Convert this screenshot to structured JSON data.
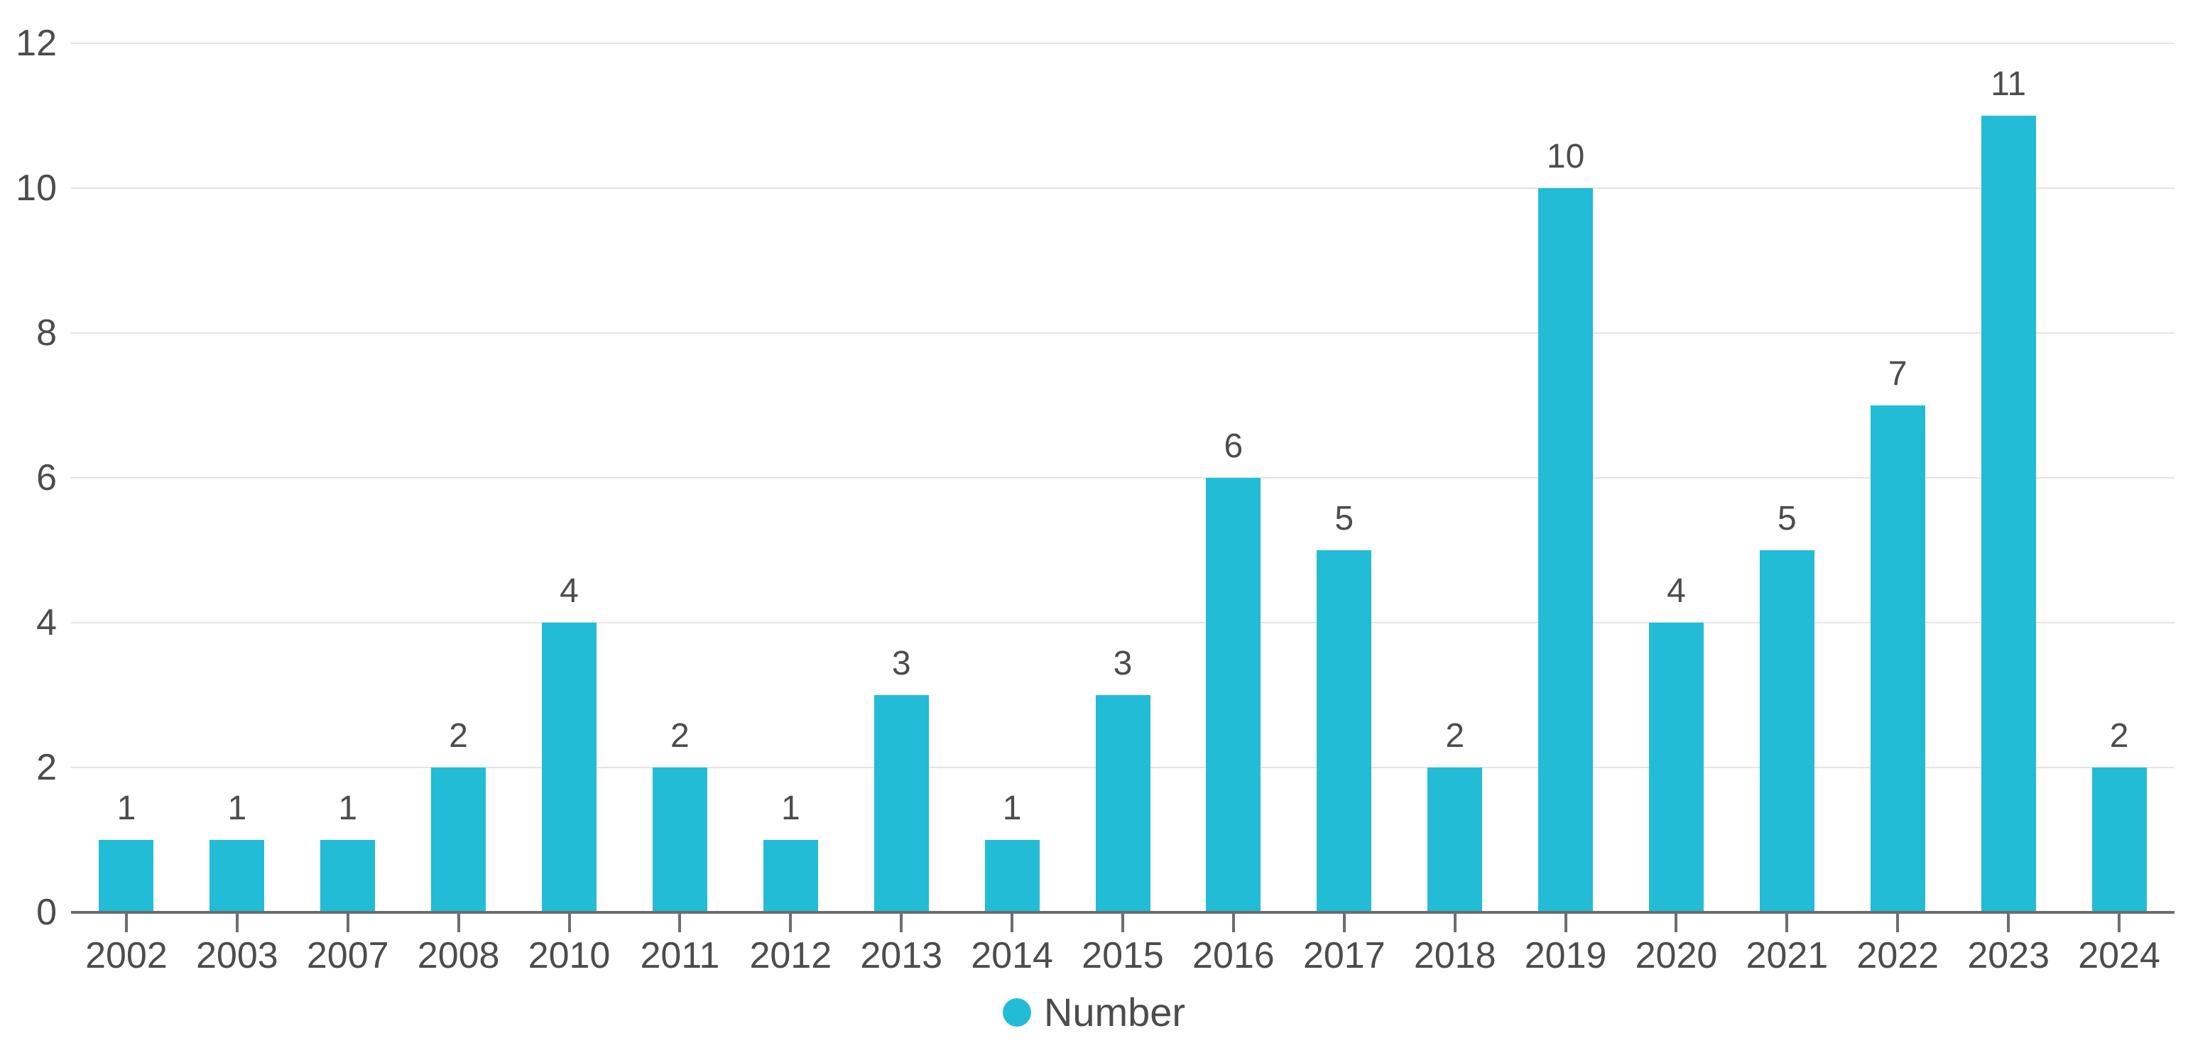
{
  "chart_data": {
    "type": "bar",
    "title": "",
    "categories": [
      "2002",
      "2003",
      "2007",
      "2008",
      "2010",
      "2011",
      "2012",
      "2013",
      "2014",
      "2015",
      "2016",
      "2017",
      "2018",
      "2019",
      "2020",
      "2021",
      "2022",
      "2023",
      "2024"
    ],
    "series": [
      {
        "name": "Number",
        "values": [
          1,
          1,
          1,
          2,
          4,
          2,
          1,
          3,
          1,
          3,
          6,
          5,
          2,
          10,
          4,
          5,
          7,
          11,
          2
        ]
      }
    ],
    "data_labels": [
      1,
      1,
      1,
      2,
      4,
      2,
      1,
      3,
      1,
      3,
      6,
      5,
      2,
      10,
      4,
      5,
      7,
      11,
      2
    ],
    "xlabel": "",
    "ylabel": "",
    "ylim": [
      0,
      12
    ],
    "yticks": [
      0,
      2,
      4,
      6,
      8,
      10,
      12
    ],
    "ytick_labels": [
      "0",
      "2",
      "4",
      "6",
      "8",
      "10",
      "12"
    ],
    "grid": true,
    "legend_position": "bottom",
    "colors": {
      "bar": "#22bcd6",
      "label_text": "#4c4c4c",
      "gridline": "#e4e4e4",
      "axis_line": "#6e6e6e"
    }
  }
}
